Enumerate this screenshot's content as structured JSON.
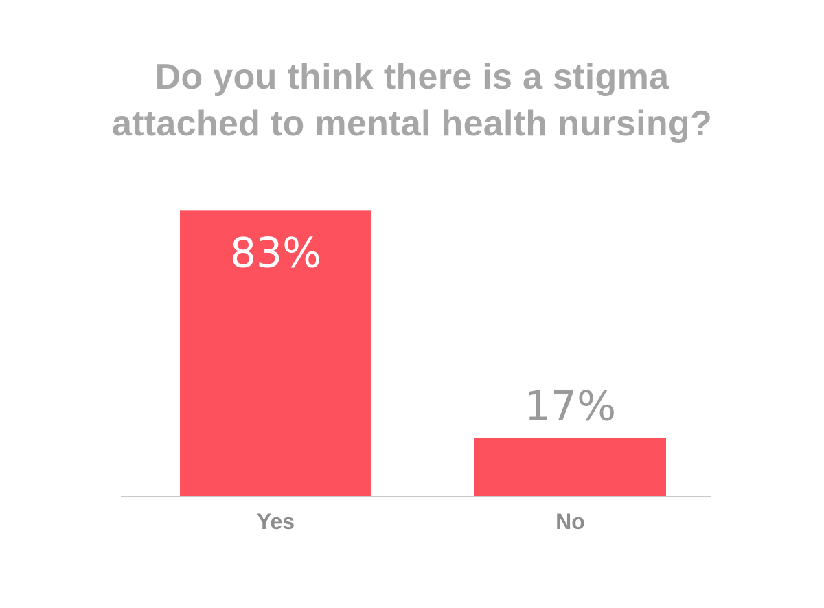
{
  "chart_data": {
    "type": "bar",
    "title_lines": [
      "Do you think there is a stigma",
      "attached to mental health nursing?"
    ],
    "categories": [
      "Yes",
      "No"
    ],
    "values": [
      83,
      17
    ],
    "value_labels": [
      "83%",
      "17%"
    ],
    "ylim": [
      0,
      100
    ],
    "grid": false,
    "legend": "none",
    "bar_color": "#fd525d",
    "title_color": "#a6a6a6"
  }
}
